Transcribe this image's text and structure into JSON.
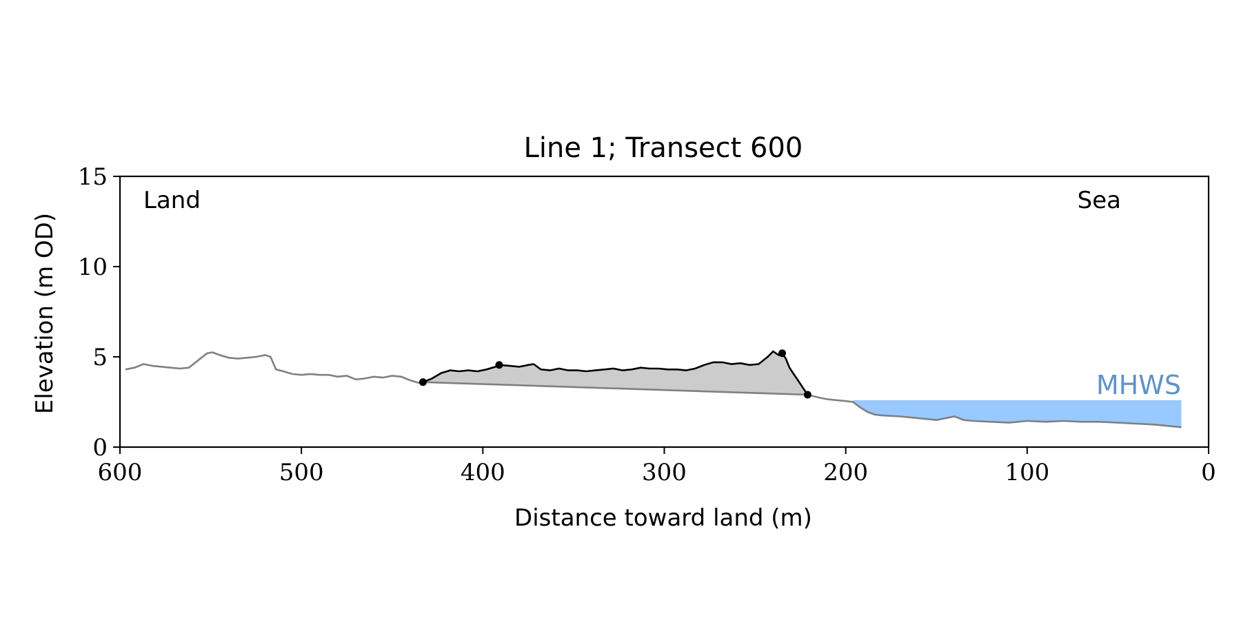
{
  "colors": {
    "terrain": "#808080",
    "dune_profile": "#000000",
    "dune_fill": "#cccccc",
    "water_fill": "#99c9ff",
    "mhws_text": "#5f93c8",
    "axis": "#000000"
  },
  "chart_data": {
    "type": "line",
    "title": "Line 1; Transect 600",
    "xlabel": "Distance toward land (m)",
    "ylabel": "Elevation (m OD)",
    "xlim": [
      600,
      0
    ],
    "ylim": [
      0,
      15
    ],
    "xticks": [
      600,
      500,
      400,
      300,
      200,
      100,
      0
    ],
    "yticks": [
      0,
      5,
      10,
      15
    ],
    "grid": false,
    "annotations": {
      "land": "Land",
      "sea": "Sea",
      "mhws": "MHWS"
    },
    "mhws_level": 2.6,
    "mhws_x_range": [
      196,
      15
    ],
    "terrain_profile": {
      "x": [
        597,
        592,
        587,
        582,
        577,
        572,
        567,
        562,
        557,
        552,
        549,
        545,
        540,
        535,
        530,
        525,
        520,
        517,
        514,
        510,
        505,
        500,
        495,
        490,
        485,
        480,
        475,
        470,
        465,
        460,
        455,
        450,
        445,
        440,
        435,
        433,
        221,
        215,
        210,
        205,
        200,
        196,
        192,
        188,
        184,
        180,
        170,
        160,
        150,
        140,
        135,
        130,
        120,
        110,
        100,
        90,
        80,
        70,
        60,
        50,
        40,
        30,
        25,
        20,
        15
      ],
      "y": [
        4.3,
        4.4,
        4.6,
        4.5,
        4.45,
        4.4,
        4.35,
        4.4,
        4.8,
        5.2,
        5.25,
        5.1,
        4.95,
        4.9,
        4.95,
        5.0,
        5.1,
        5.0,
        4.3,
        4.2,
        4.05,
        4.0,
        4.05,
        4.0,
        4.0,
        3.9,
        3.95,
        3.75,
        3.8,
        3.9,
        3.85,
        3.95,
        3.9,
        3.7,
        3.55,
        3.6,
        2.9,
        2.75,
        2.65,
        2.6,
        2.55,
        2.5,
        2.2,
        1.95,
        1.8,
        1.75,
        1.7,
        1.6,
        1.5,
        1.7,
        1.5,
        1.45,
        1.4,
        1.35,
        1.45,
        1.4,
        1.45,
        1.4,
        1.4,
        1.35,
        1.3,
        1.25,
        1.2,
        1.15,
        1.1
      ]
    },
    "dune_profile": {
      "x": [
        433,
        428,
        423,
        418,
        413,
        408,
        403,
        398,
        393,
        391,
        385,
        380,
        375,
        372,
        368,
        363,
        358,
        353,
        348,
        343,
        338,
        333,
        328,
        323,
        318,
        313,
        308,
        303,
        298,
        293,
        288,
        283,
        278,
        273,
        268,
        263,
        258,
        253,
        248,
        243,
        240,
        237,
        235,
        233,
        231,
        229,
        227,
        225,
        223,
        221
      ],
      "y": [
        3.6,
        3.8,
        4.1,
        4.25,
        4.2,
        4.25,
        4.2,
        4.3,
        4.45,
        4.55,
        4.5,
        4.45,
        4.55,
        4.6,
        4.3,
        4.25,
        4.35,
        4.25,
        4.25,
        4.2,
        4.25,
        4.3,
        4.35,
        4.25,
        4.3,
        4.4,
        4.35,
        4.35,
        4.3,
        4.3,
        4.25,
        4.35,
        4.55,
        4.7,
        4.7,
        4.6,
        4.65,
        4.55,
        4.6,
        5.0,
        5.3,
        5.1,
        5.2,
        4.9,
        4.4,
        4.1,
        3.8,
        3.5,
        3.2,
        2.9
      ]
    },
    "dune_markers": {
      "x": [
        433,
        391,
        235,
        221
      ],
      "y": [
        3.6,
        4.55,
        5.2,
        2.9
      ]
    }
  }
}
